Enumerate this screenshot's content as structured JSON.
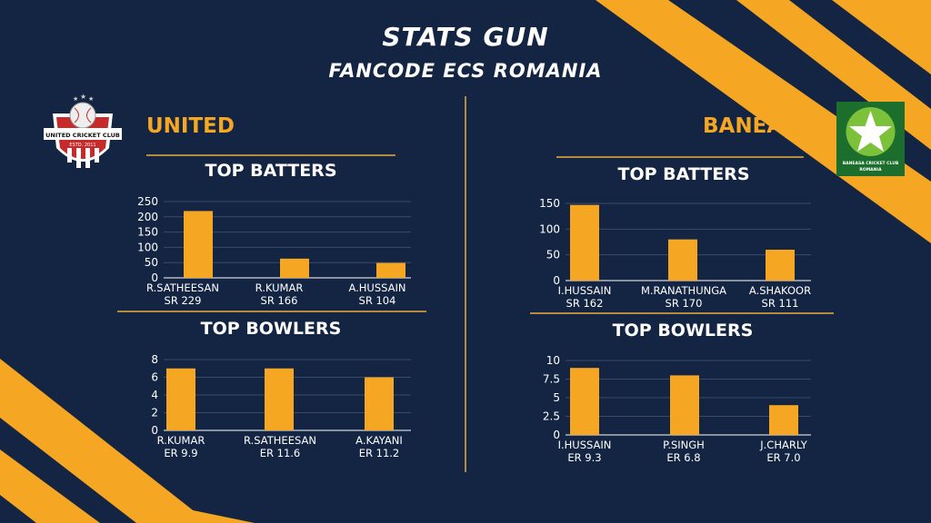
{
  "header": {
    "title": "STATS GUN",
    "subtitle": "FANCODE ECS ROMANIA"
  },
  "colors": {
    "background": "#142543",
    "accent": "#f5a623",
    "rule": "#b58a3c",
    "grid": "#3a4a68"
  },
  "teams": {
    "left": {
      "name": "UNITED",
      "logo": {
        "icon": "united-cricket-club-crest-icon",
        "text": "UNITED CRICKET CLUB",
        "estd": "ESTD. 2011"
      }
    },
    "right": {
      "name": "BANEASA",
      "logo": {
        "icon": "baneasa-star-logo-icon",
        "text_line1": "BANEASA CRICKET CLUB",
        "text_line2": "ROMANIA"
      }
    }
  },
  "sections": {
    "batters_title": "TOP BATTERS",
    "bowlers_title": "TOP BOWLERS"
  },
  "chart_data": [
    {
      "id": "united-batters",
      "type": "bar",
      "title": "TOP BATTERS",
      "categories": [
        "R.SATHEESAN",
        "R.KUMAR",
        "A.HUSSAIN"
      ],
      "sublabels": [
        "SR 229",
        "SR 166",
        "SR 104"
      ],
      "values": [
        219,
        63,
        49
      ],
      "ylim": [
        0,
        250
      ],
      "yticks": [
        "0",
        "50",
        "100",
        "150",
        "200",
        "250"
      ],
      "tick_values": [
        0,
        50,
        100,
        150,
        200,
        250
      ],
      "grid": true,
      "xlabel": "",
      "ylabel": ""
    },
    {
      "id": "united-bowlers",
      "type": "bar",
      "title": "TOP BOWLERS",
      "categories": [
        "R.KUMAR",
        "R.SATHEESAN",
        "A.KAYANI"
      ],
      "sublabels": [
        "ER 9.9",
        "ER 11.6",
        "ER 11.2"
      ],
      "values": [
        7,
        7,
        6
      ],
      "ylim": [
        0,
        8
      ],
      "yticks": [
        "0",
        "2",
        "4",
        "6",
        "8"
      ],
      "tick_values": [
        0,
        2,
        4,
        6,
        8
      ],
      "grid": true,
      "xlabel": "",
      "ylabel": ""
    },
    {
      "id": "baneasa-batters",
      "type": "bar",
      "title": "TOP BATTERS",
      "categories": [
        "I.HUSSAIN",
        "M.RANATHUNGA",
        "A.SHAKOOR"
      ],
      "sublabels": [
        "SR 162",
        "SR 170",
        "SR 111"
      ],
      "values": [
        147,
        80,
        60
      ],
      "ylim": [
        0,
        150
      ],
      "yticks": [
        "0",
        "50",
        "100",
        "150"
      ],
      "tick_values": [
        0,
        50,
        100,
        150
      ],
      "grid": true,
      "xlabel": "",
      "ylabel": ""
    },
    {
      "id": "baneasa-bowlers",
      "type": "bar",
      "title": "TOP BOWLERS",
      "categories": [
        "I.HUSSAIN",
        "P.SINGH",
        "J.CHARLY"
      ],
      "sublabels": [
        "ER 9.3",
        "ER 6.8",
        "ER 7.0"
      ],
      "values": [
        9,
        8,
        4
      ],
      "ylim": [
        0,
        10
      ],
      "yticks": [
        "0",
        "2.5",
        "5",
        "7.5",
        "10"
      ],
      "tick_values": [
        0,
        2.5,
        5,
        7.5,
        10
      ],
      "grid": true,
      "xlabel": "",
      "ylabel": ""
    }
  ]
}
